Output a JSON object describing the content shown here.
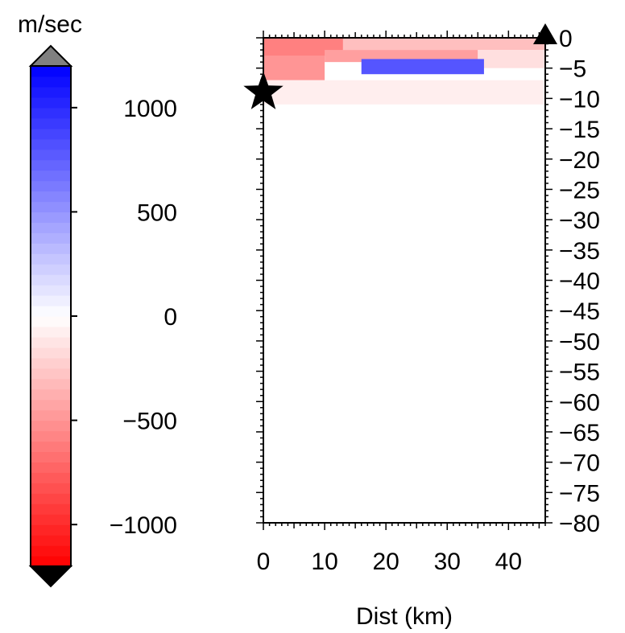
{
  "chart_data": [
    {
      "type": "heatmap",
      "title": "",
      "xlabel": "Dist (km)",
      "ylabel": "",
      "xlim": [
        0,
        46
      ],
      "ylim": [
        -80,
        0
      ],
      "x_ticks": [
        0,
        10,
        20,
        30,
        40
      ],
      "x_tick_labels": [
        "0",
        "10",
        "20",
        "30",
        "40"
      ],
      "y_ticks": [
        0,
        -5,
        -10,
        -15,
        -20,
        -25,
        -30,
        -35,
        -40,
        -45,
        -50,
        -55,
        -60,
        -65,
        -70,
        -75,
        -80
      ],
      "y_tick_labels": [
        "0",
        "−5",
        "−10",
        "−15",
        "−20",
        "−25",
        "−30",
        "−35",
        "−40",
        "−45",
        "−50",
        "−55",
        "−60",
        "−65",
        "−70",
        "−75",
        "−80"
      ],
      "anomaly_regions": [
        {
          "x0": 0,
          "x1": 13,
          "y0": -3,
          "y1": 0,
          "value": -600
        },
        {
          "x0": 13,
          "x1": 46,
          "y0": -2,
          "y1": 0,
          "value": -300
        },
        {
          "x0": 0,
          "x1": 10,
          "y0": -7,
          "y1": -3,
          "value": -500
        },
        {
          "x0": 10,
          "x1": 35,
          "y0": -4,
          "y1": -2,
          "value": -450
        },
        {
          "x0": 35,
          "x1": 46,
          "y0": -5,
          "y1": -2,
          "value": -150
        },
        {
          "x0": 16,
          "x1": 36,
          "y0": -6,
          "y1": -3.5,
          "value": 800
        },
        {
          "x0": 0,
          "x1": 46,
          "y0": -11,
          "y1": -7,
          "value": -80
        }
      ],
      "markers": [
        {
          "symbol": "star",
          "x": 0,
          "y": -9,
          "name": "source-star"
        },
        {
          "symbol": "triangle",
          "x": 46,
          "y": 0,
          "name": "station-triangle"
        }
      ],
      "colorbar": {
        "label": "m/sec",
        "range": [
          -1200,
          1200
        ],
        "ticks": [
          1000,
          500,
          0,
          -500,
          -1000
        ],
        "tick_labels": [
          "1000",
          "500",
          "0",
          "−500",
          "−1000"
        ],
        "colors": {
          "low": "#ff0000",
          "mid": "#ffffff",
          "high": "#0000ff"
        },
        "over_color": "#808080",
        "under_color": "#000000"
      }
    }
  ]
}
